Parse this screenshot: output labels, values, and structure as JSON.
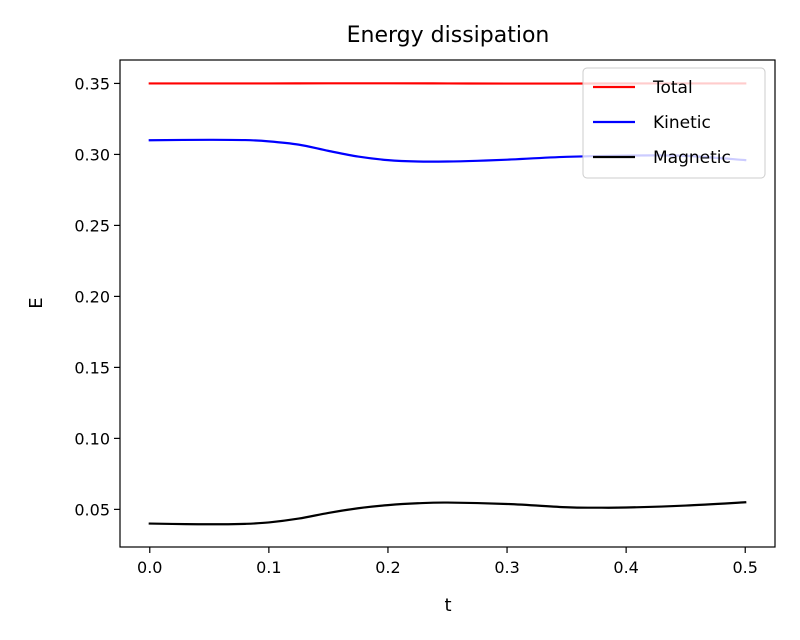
{
  "chart_data": {
    "type": "line",
    "title": "Energy dissipation",
    "xlabel": "t",
    "ylabel": "E",
    "xlim": [
      -0.025,
      0.525
    ],
    "ylim": [
      0.0235,
      0.3665
    ],
    "xticks": [
      0.0,
      0.1,
      0.2,
      0.3,
      0.4,
      0.5
    ],
    "xtick_labels": [
      "0.0",
      "0.1",
      "0.2",
      "0.3",
      "0.4",
      "0.5"
    ],
    "yticks": [
      0.05,
      0.1,
      0.15,
      0.2,
      0.25,
      0.3,
      0.35
    ],
    "ytick_labels": [
      "0.05",
      "0.10",
      "0.15",
      "0.20",
      "0.25",
      "0.30",
      "0.35"
    ],
    "grid": false,
    "legend_position": "top-right",
    "series": [
      {
        "name": "Total",
        "color": "#ff0000",
        "x": [
          0.0,
          0.05,
          0.1,
          0.15,
          0.2,
          0.25,
          0.3,
          0.35,
          0.4,
          0.45,
          0.5
        ],
        "y": [
          0.35,
          0.35,
          0.35,
          0.3501,
          0.3501,
          0.35,
          0.3499,
          0.3499,
          0.35,
          0.35,
          0.35
        ]
      },
      {
        "name": "Kinetic",
        "color": "#0000ff",
        "x": [
          0.0,
          0.05,
          0.08,
          0.1,
          0.125,
          0.15,
          0.175,
          0.2,
          0.225,
          0.25,
          0.275,
          0.3,
          0.35,
          0.4,
          0.45,
          0.5
        ],
        "y": [
          0.31,
          0.3103,
          0.3101,
          0.3092,
          0.3069,
          0.3025,
          0.2985,
          0.296,
          0.295,
          0.295,
          0.2955,
          0.2963,
          0.2983,
          0.2992,
          0.299,
          0.296
        ]
      },
      {
        "name": "Magnetic",
        "color": "#000000",
        "x": [
          0.0,
          0.03,
          0.06,
          0.08,
          0.1,
          0.125,
          0.15,
          0.175,
          0.2,
          0.225,
          0.25,
          0.3,
          0.35,
          0.375,
          0.4,
          0.45,
          0.5
        ],
        "y": [
          0.04,
          0.0396,
          0.0395,
          0.0398,
          0.0408,
          0.0435,
          0.0475,
          0.0508,
          0.053,
          0.0543,
          0.0548,
          0.0538,
          0.0515,
          0.0512,
          0.0513,
          0.0527,
          0.055
        ]
      }
    ]
  }
}
